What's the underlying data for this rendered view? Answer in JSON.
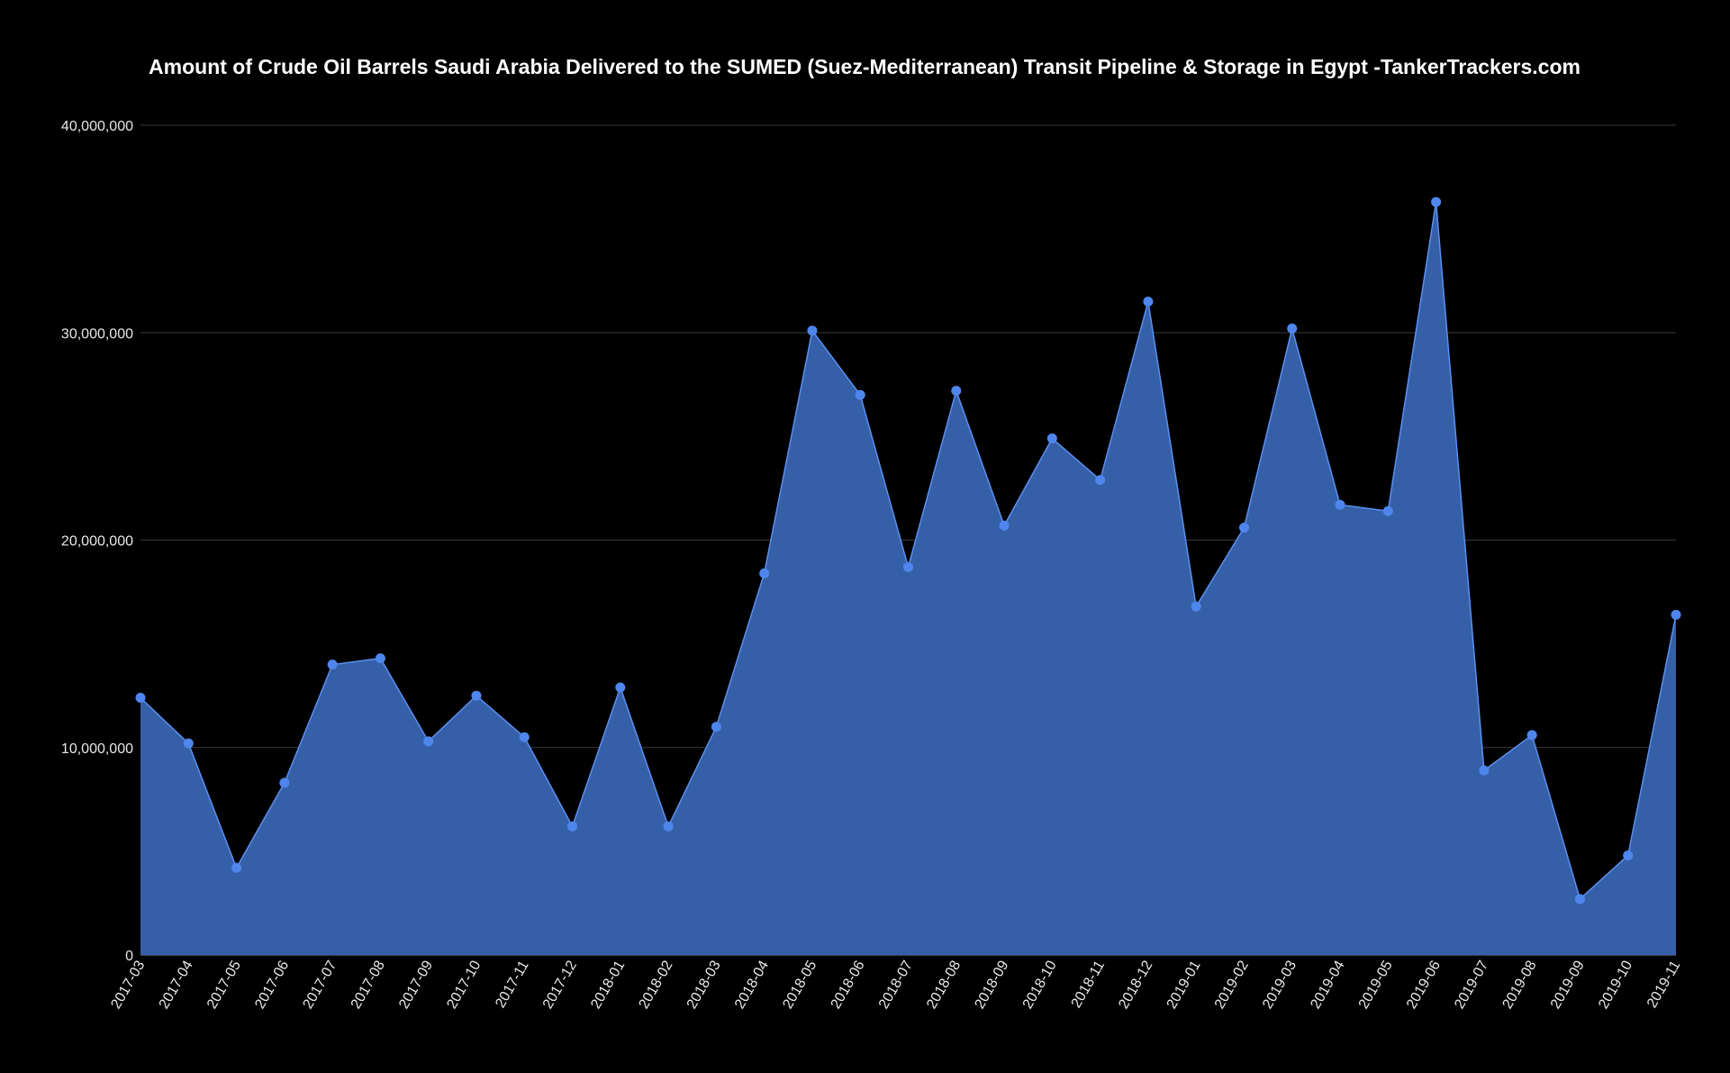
{
  "chart_data": {
    "type": "area",
    "title": "Amount of Crude Oil Barrels Saudi Arabia Delivered to the SUMED (Suez-Mediterranean) Transit Pipeline & Storage in Egypt -TankerTrackers.com",
    "xlabel": "",
    "ylabel": "",
    "ylim": [
      0,
      40000000
    ],
    "yticks": [
      0,
      10000000,
      20000000,
      30000000,
      40000000
    ],
    "ytick_labels": [
      "0",
      "10,000,000",
      "20,000,000",
      "30,000,000",
      "40,000,000"
    ],
    "grid": true,
    "legend": "none",
    "markers": true,
    "categories": [
      "2017-03",
      "2017-04",
      "2017-05",
      "2017-06",
      "2017-07",
      "2017-08",
      "2017-09",
      "2017-10",
      "2017-11",
      "2017-12",
      "2018-01",
      "2018-02",
      "2018-03",
      "2018-04",
      "2018-05",
      "2018-06",
      "2018-07",
      "2018-08",
      "2018-09",
      "2018-10",
      "2018-11",
      "2018-12",
      "2019-01",
      "2019-02",
      "2019-03",
      "2019-04",
      "2019-05",
      "2019-06",
      "2019-07",
      "2019-08",
      "2019-09",
      "2019-10",
      "2019-11"
    ],
    "values": [
      12400000,
      10200000,
      4200000,
      8300000,
      14000000,
      14300000,
      10300000,
      12500000,
      10500000,
      6200000,
      12900000,
      6200000,
      11000000,
      18400000,
      30100000,
      27000000,
      18700000,
      27200000,
      20700000,
      24900000,
      22900000,
      31500000,
      16800000,
      20600000,
      30200000,
      21700000,
      21400000,
      36300000,
      8900000,
      10600000,
      2700000,
      4800000,
      16400000
    ],
    "colors": {
      "background": "#000000",
      "fill": "#3560a8",
      "line": "#5b8ff0",
      "marker": "#4f86ed",
      "grid": "#3a3a3a",
      "text": "#e8e8e8",
      "title": "#ffffff"
    }
  }
}
